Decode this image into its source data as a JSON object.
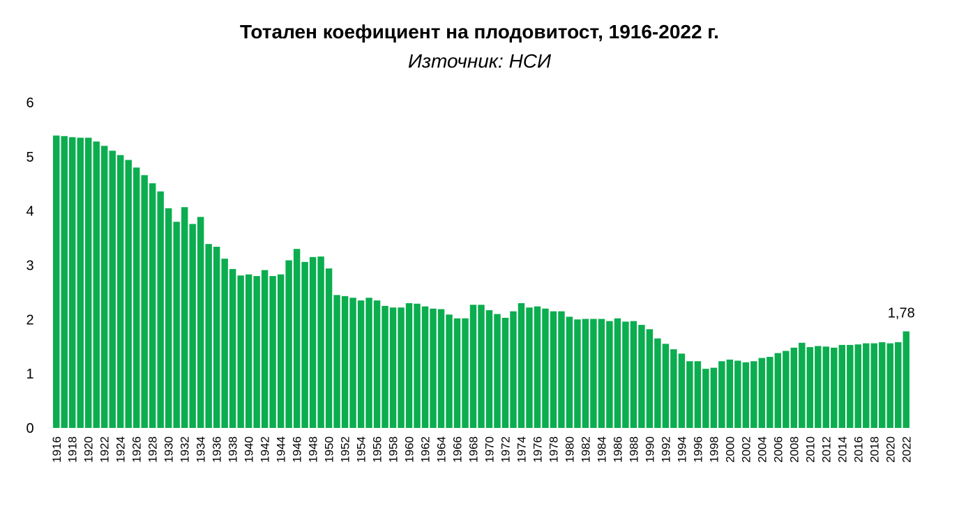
{
  "chart_data": {
    "type": "bar",
    "title": "Тотален коефициент на плодовитост, 1916-2022 г.",
    "subtitle": "Източник: НСИ",
    "xlabel": "",
    "ylabel": "",
    "ylim": [
      0,
      6
    ],
    "yticks": [
      "0",
      "1",
      "2",
      "3",
      "4",
      "5",
      "6"
    ],
    "grid": false,
    "legend": "none",
    "bar_color": "#0bad4f",
    "categories": [
      "1916",
      "1917",
      "1918",
      "1919",
      "1920",
      "1921",
      "1922",
      "1923",
      "1924",
      "1925",
      "1926",
      "1927",
      "1928",
      "1929",
      "1930",
      "1931",
      "1932",
      "1933",
      "1934",
      "1935",
      "1936",
      "1937",
      "1938",
      "1939",
      "1940",
      "1941",
      "1942",
      "1943",
      "1944",
      "1945",
      "1946",
      "1947",
      "1948",
      "1949",
      "1950",
      "1951",
      "1952",
      "1953",
      "1954",
      "1955",
      "1956",
      "1957",
      "1958",
      "1959",
      "1960",
      "1961",
      "1962",
      "1963",
      "1964",
      "1965",
      "1966",
      "1967",
      "1968",
      "1969",
      "1970",
      "1971",
      "1972",
      "1973",
      "1974",
      "1975",
      "1976",
      "1977",
      "1978",
      "1979",
      "1980",
      "1981",
      "1982",
      "1983",
      "1984",
      "1985",
      "1986",
      "1987",
      "1988",
      "1989",
      "1990",
      "1991",
      "1992",
      "1993",
      "1994",
      "1995",
      "1996",
      "1997",
      "1998",
      "1999",
      "2000",
      "2001",
      "2002",
      "2003",
      "2004",
      "2005",
      "2006",
      "2007",
      "2008",
      "2009",
      "2010",
      "2011",
      "2012",
      "2013",
      "2014",
      "2015",
      "2016",
      "2017",
      "2018",
      "2019",
      "2020",
      "2021",
      "2022"
    ],
    "values": [
      5.39,
      5.38,
      5.36,
      5.35,
      5.35,
      5.28,
      5.2,
      5.11,
      5.03,
      4.94,
      4.8,
      4.66,
      4.51,
      4.36,
      4.05,
      3.8,
      4.07,
      3.76,
      3.89,
      3.39,
      3.34,
      3.12,
      2.93,
      2.81,
      2.83,
      2.8,
      2.91,
      2.8,
      2.83,
      3.09,
      3.3,
      3.06,
      3.15,
      3.16,
      2.94,
      2.45,
      2.43,
      2.4,
      2.35,
      2.4,
      2.35,
      2.25,
      2.22,
      2.22,
      2.3,
      2.29,
      2.24,
      2.2,
      2.19,
      2.09,
      2.02,
      2.02,
      2.27,
      2.27,
      2.17,
      2.1,
      2.03,
      2.15,
      2.3,
      2.22,
      2.24,
      2.2,
      2.15,
      2.15,
      2.05,
      2.0,
      2.01,
      2.01,
      2.01,
      1.97,
      2.02,
      1.96,
      1.97,
      1.9,
      1.82,
      1.65,
      1.55,
      1.45,
      1.37,
      1.23,
      1.23,
      1.09,
      1.11,
      1.23,
      1.26,
      1.24,
      1.21,
      1.23,
      1.29,
      1.31,
      1.38,
      1.42,
      1.48,
      1.57,
      1.49,
      1.51,
      1.5,
      1.48,
      1.53,
      1.53,
      1.54,
      1.56,
      1.56,
      1.58,
      1.56,
      1.58,
      1.78
    ],
    "x_tick_labels": [
      "1916",
      "1918",
      "1920",
      "1922",
      "1924",
      "1926",
      "1928",
      "1930",
      "1932",
      "1934",
      "1936",
      "1938",
      "1940",
      "1942",
      "1944",
      "1946",
      "1948",
      "1950",
      "1952",
      "1954",
      "1956",
      "1958",
      "1960",
      "1962",
      "1964",
      "1966",
      "1968",
      "1970",
      "1972",
      "1974",
      "1976",
      "1978",
      "1980",
      "1982",
      "1984",
      "1986",
      "1988",
      "1990",
      "1992",
      "1994",
      "1996",
      "1998",
      "2000",
      "2002",
      "2004",
      "2006",
      "2008",
      "2010",
      "2012",
      "2014",
      "2016",
      "2018",
      "2020",
      "2022"
    ],
    "annotations": [
      {
        "category": "2022",
        "text": "1,78"
      }
    ]
  }
}
